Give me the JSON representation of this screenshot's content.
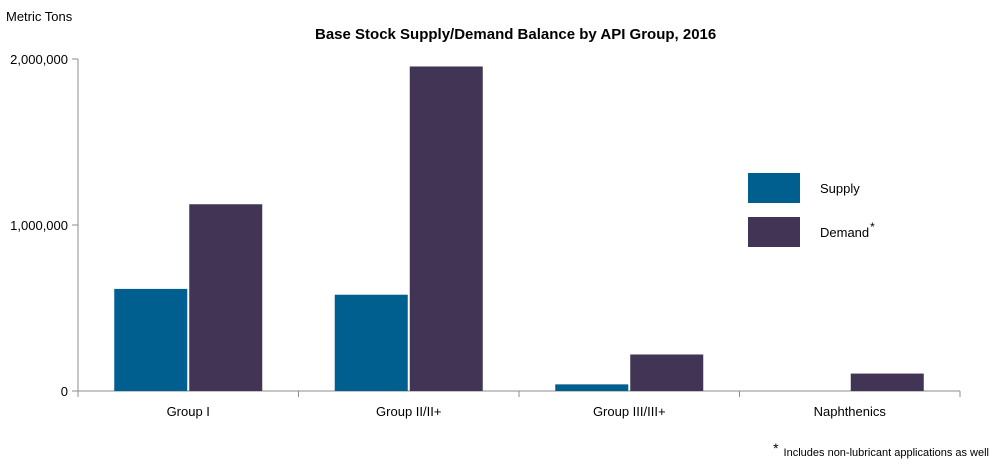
{
  "unit_label": "Metric Tons",
  "footnote": {
    "marker": "*",
    "text": "Includes non-lubricant applications as well"
  },
  "colors": {
    "supply": "#005f8e",
    "demand": "#423455",
    "axis": "#8c8c8c"
  },
  "chart_data": {
    "type": "bar",
    "title": "Base Stock Supply/Demand Balance by API Group, 2016",
    "xlabel": "",
    "ylabel": "Metric Tons",
    "ylim": [
      0,
      2000000
    ],
    "yticks": [
      0,
      1000000,
      2000000
    ],
    "ytick_labels": [
      "0",
      "1,000,000",
      "2,000,000"
    ],
    "categories": [
      "Group I",
      "Group II/II+",
      "Group III/III+",
      "Naphthenics"
    ],
    "series": [
      {
        "name": "Supply",
        "values": [
          615000,
          580000,
          40000,
          0
        ]
      },
      {
        "name": "Demand",
        "values": [
          1125000,
          1955000,
          220000,
          105000
        ]
      }
    ],
    "legend": {
      "placement": "right",
      "entries": [
        {
          "label": "Supply",
          "marker": ""
        },
        {
          "label": "Demand",
          "marker": "*"
        }
      ]
    },
    "grid": false
  }
}
